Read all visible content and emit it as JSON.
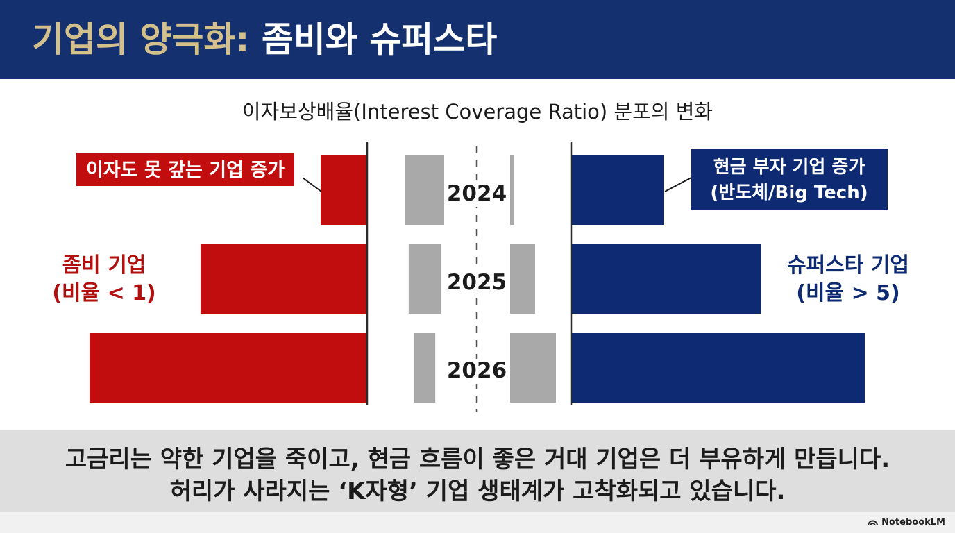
{
  "header": {
    "title_accent": "기업의 양극화:",
    "title_rest": "좀비와 슈퍼스타"
  },
  "chart_data": {
    "type": "bar",
    "title": "이자보상배율(Interest Coverage Ratio) 분포의 변화",
    "categories": [
      "2024",
      "2025",
      "2026"
    ],
    "series": [
      {
        "name": "좀비 기업",
        "values": [
          0.67,
          2.4,
          4.0
        ]
      },
      {
        "name": "슈퍼스타 기업",
        "values": [
          1.33,
          2.73,
          4.23
        ]
      }
    ],
    "middle_bars": {
      "left_values": [
        3.5,
        2.9,
        1.9
      ],
      "right_values": [
        0.2,
        1.2,
        2.2
      ]
    },
    "annotations": {
      "left_callout": "이자도 못 갚는 기업 증가",
      "right_callout_line1": "현금 부자 기업 증가",
      "right_callout_line2": "(반도체/Big Tech)",
      "left_label_line1": "좀비 기업",
      "left_label_line2": "(비율 < 1)",
      "right_label_line1": "슈퍼스타 기업",
      "right_label_line2": "(비율 > 5)"
    },
    "colors": {
      "left": "#c10d0d",
      "right": "#0d2a73",
      "middle": "#a9a9a9"
    }
  },
  "footer": {
    "line1": "고금리는 약한 기업을 죽이고, 현금 흐름이 좋은 거대 기업은 더 부유하게 만듭니다.",
    "line2": "허리가 사라지는 ‘K자형’ 기업 생태계가 고착화되고 있습니다."
  },
  "brand": {
    "icon": "notebooklm-logo-icon",
    "label": "NotebookLM"
  }
}
